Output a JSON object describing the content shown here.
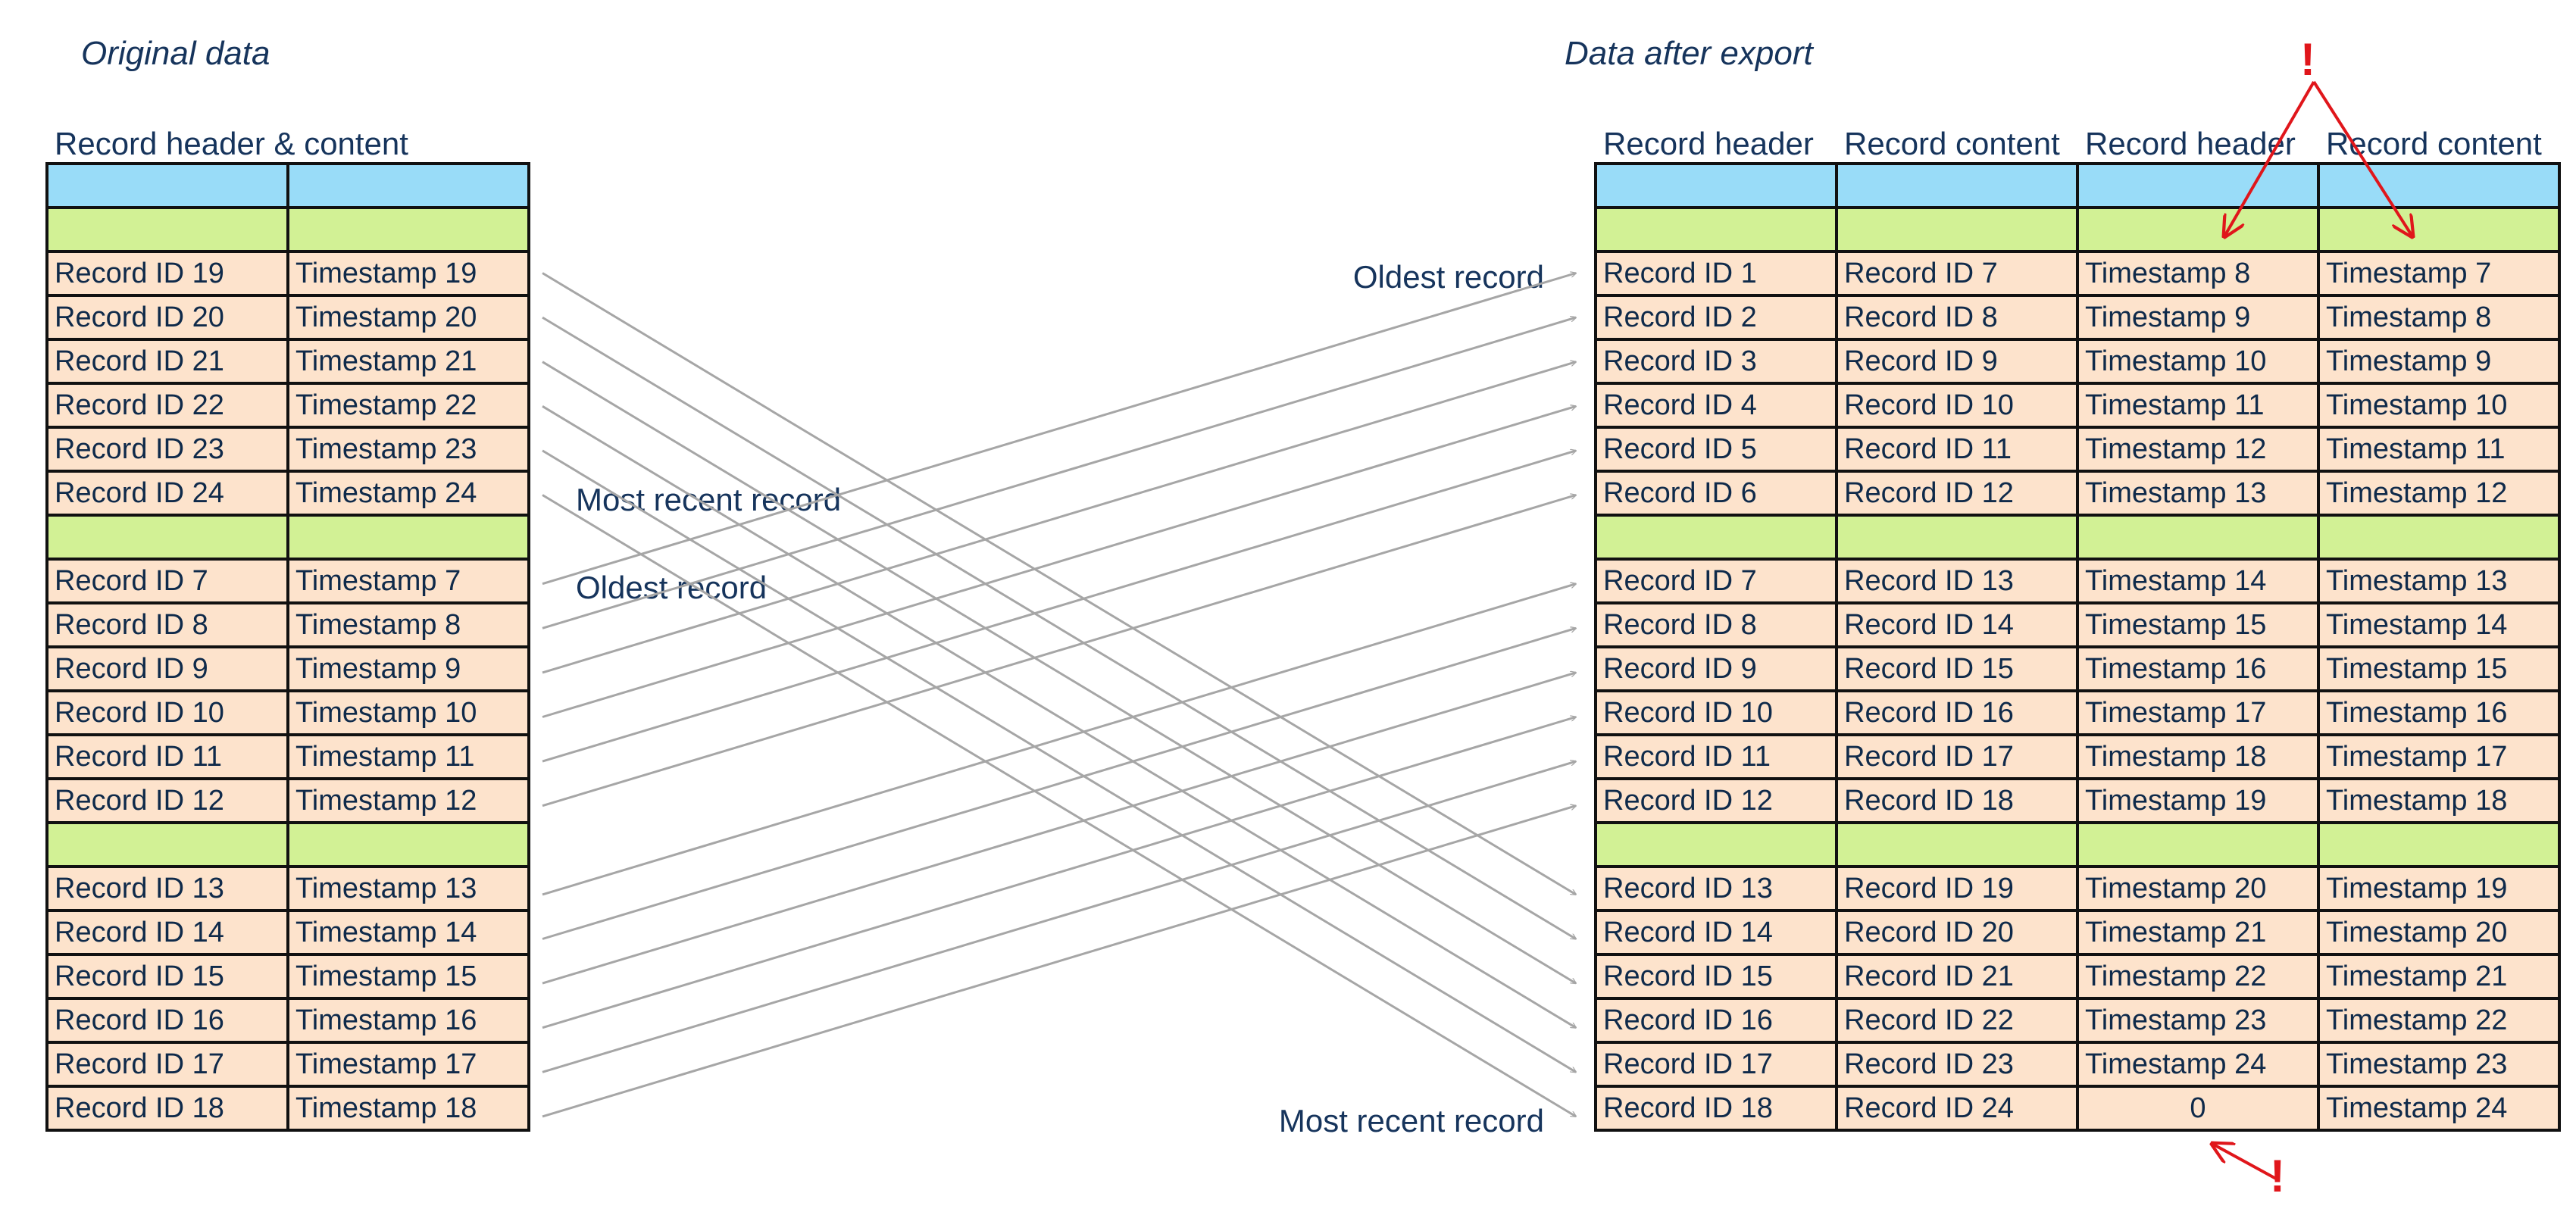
{
  "colors": {
    "header_row": "#99dcf8",
    "separator_row": "#d2f195",
    "data_row": "#fde3cc",
    "arrow": "#a6a6a6",
    "warning": "#e0161b",
    "text": "#16345c"
  },
  "left": {
    "title": "Original data",
    "header": "Record header & content",
    "groups": [
      [
        [
          "Record ID 19",
          "Timestamp 19"
        ],
        [
          "Record ID 20",
          "Timestamp 20"
        ],
        [
          "Record ID 21",
          "Timestamp 21"
        ],
        [
          "Record ID 22",
          "Timestamp 22"
        ],
        [
          "Record ID 23",
          "Timestamp 23"
        ],
        [
          "Record ID 24",
          "Timestamp 24"
        ]
      ],
      [
        [
          "Record ID 7",
          "Timestamp 7"
        ],
        [
          "Record ID 8",
          "Timestamp 8"
        ],
        [
          "Record ID 9",
          "Timestamp 9"
        ],
        [
          "Record ID 10",
          "Timestamp 10"
        ],
        [
          "Record ID 11",
          "Timestamp 11"
        ],
        [
          "Record ID 12",
          "Timestamp 12"
        ]
      ],
      [
        [
          "Record ID 13",
          "Timestamp 13"
        ],
        [
          "Record ID 14",
          "Timestamp 14"
        ],
        [
          "Record ID 15",
          "Timestamp 15"
        ],
        [
          "Record ID 16",
          "Timestamp 16"
        ],
        [
          "Record ID 17",
          "Timestamp 17"
        ],
        [
          "Record ID 18",
          "Timestamp 18"
        ]
      ]
    ]
  },
  "right": {
    "title": "Data after export",
    "headers": [
      "Record header",
      "Record content",
      "Record header",
      "Record content"
    ],
    "groups": [
      [
        [
          "Record ID 1",
          "Record ID 7",
          "Timestamp 8",
          "Timestamp 7"
        ],
        [
          "Record ID 2",
          "Record ID 8",
          "Timestamp 9",
          "Timestamp 8"
        ],
        [
          "Record ID 3",
          "Record ID 9",
          "Timestamp 10",
          "Timestamp 9"
        ],
        [
          "Record ID 4",
          "Record ID 10",
          "Timestamp 11",
          "Timestamp 10"
        ],
        [
          "Record ID 5",
          "Record ID 11",
          "Timestamp 12",
          "Timestamp 11"
        ],
        [
          "Record ID 6",
          "Record ID 12",
          "Timestamp 13",
          "Timestamp 12"
        ]
      ],
      [
        [
          "Record ID 7",
          "Record ID 13",
          "Timestamp 14",
          "Timestamp 13"
        ],
        [
          "Record ID 8",
          "Record ID 14",
          "Timestamp 15",
          "Timestamp 14"
        ],
        [
          "Record ID 9",
          "Record ID 15",
          "Timestamp 16",
          "Timestamp 15"
        ],
        [
          "Record ID 10",
          "Record ID 16",
          "Timestamp 17",
          "Timestamp 16"
        ],
        [
          "Record ID 11",
          "Record ID 17",
          "Timestamp 18",
          "Timestamp 17"
        ],
        [
          "Record ID 12",
          "Record ID 18",
          "Timestamp 19",
          "Timestamp 18"
        ]
      ],
      [
        [
          "Record ID 13",
          "Record ID 19",
          "Timestamp 20",
          "Timestamp 19"
        ],
        [
          "Record ID 14",
          "Record ID 20",
          "Timestamp 21",
          "Timestamp 20"
        ],
        [
          "Record ID 15",
          "Record ID 21",
          "Timestamp 22",
          "Timestamp 21"
        ],
        [
          "Record ID 16",
          "Record ID 22",
          "Timestamp 23",
          "Timestamp 22"
        ],
        [
          "Record ID 17",
          "Record ID 23",
          "Timestamp 24",
          "Timestamp 23"
        ],
        [
          "Record ID 18",
          "Record ID 24",
          "0",
          "Timestamp 24"
        ]
      ]
    ]
  },
  "annotations": {
    "mid_most_recent": "Most recent record",
    "mid_oldest": "Oldest record",
    "right_oldest": "Oldest record",
    "right_most_recent": "Most recent record",
    "warning_mark": "!"
  },
  "mapping": [
    {
      "from_group": 0,
      "to_group": 2
    },
    {
      "from_group": 1,
      "to_group": 0
    },
    {
      "from_group": 2,
      "to_group": 1
    }
  ]
}
